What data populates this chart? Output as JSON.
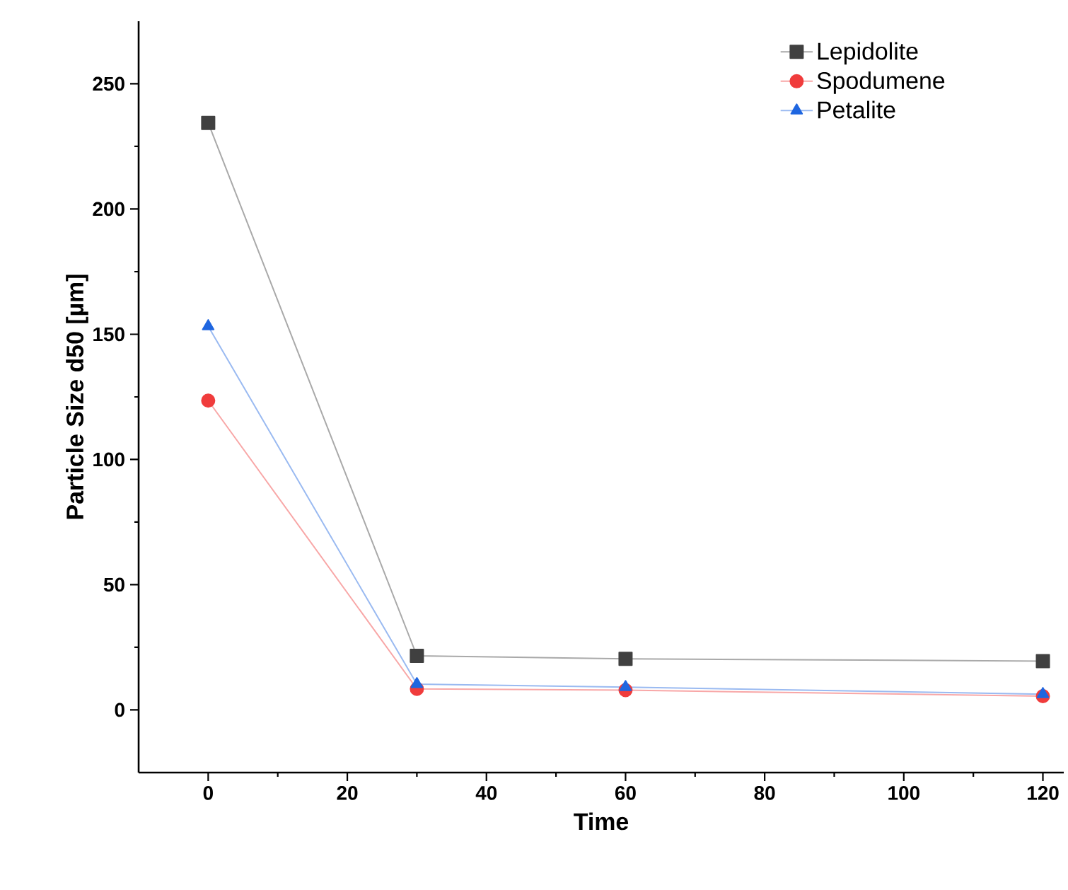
{
  "chart_data": {
    "type": "line",
    "xlabel": "Time",
    "ylabel": "Particle Size d50 [µm]",
    "x": [
      0,
      30,
      60,
      120
    ],
    "series": [
      {
        "name": "Lepidolite",
        "color": "#404040",
        "marker": "square",
        "values": [
          234.4,
          21.6,
          20.4,
          19.5
        ]
      },
      {
        "name": "Spodumene",
        "color": "#f03c3c",
        "marker": "circle",
        "values": [
          123.5,
          8.4,
          7.9,
          5.5
        ]
      },
      {
        "name": "Petalite",
        "color": "#1f66e0",
        "marker": "triangle",
        "values": [
          153.2,
          10.3,
          9.1,
          6.3
        ]
      }
    ],
    "xlim": [
      -10,
      123
    ],
    "ylim": [
      -25,
      275
    ],
    "xticks": [
      0,
      20,
      40,
      60,
      80,
      100,
      120
    ],
    "yticks": [
      0,
      50,
      100,
      150,
      200,
      250
    ],
    "grid": false,
    "legend": "top right",
    "line_style": "solid"
  }
}
